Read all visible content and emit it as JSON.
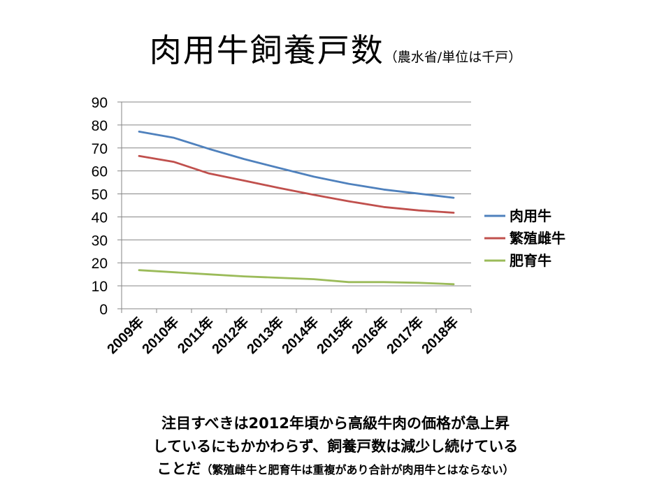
{
  "title": {
    "main": "肉用牛飼養戸数",
    "sub": "（農水省/単位は千戸）"
  },
  "notes": {
    "line1": "注目すべきは2012年頃から高級牛肉の価格が急上昇",
    "line2": "しているにもかかわらず、飼養戸数は減少し続けている",
    "line3_main": "ことだ",
    "line3_small": "（繁殖雌牛と肥育牛は重複があり合計が肉用牛とはならない）"
  },
  "chart_data": {
    "type": "line",
    "title": "肉用牛飼養戸数",
    "xlabel": "",
    "ylabel": "",
    "categories": [
      "2009年",
      "2010年",
      "2011年",
      "2012年",
      "2013年",
      "2014年",
      "2015年",
      "2016年",
      "2017年",
      "2018年"
    ],
    "ylim": [
      0,
      90
    ],
    "yticks": [
      "0",
      "10",
      "20",
      "30",
      "40",
      "50",
      "60",
      "70",
      "80",
      "90"
    ],
    "grid": true,
    "legend": "right",
    "series": [
      {
        "name": "肉用牛",
        "color": "#4F81BD",
        "values": [
          77.1,
          74.4,
          69.6,
          65.2,
          61.3,
          57.5,
          54.4,
          51.9,
          50.1,
          48.3
        ]
      },
      {
        "name": "繁殖雌牛",
        "color": "#C0504D",
        "values": [
          66.5,
          63.9,
          58.9,
          55.8,
          52.6,
          49.6,
          46.8,
          44.3,
          42.8,
          41.8
        ]
      },
      {
        "name": "肥育牛",
        "color": "#9BBB59",
        "values": [
          16.8,
          15.9,
          15.0,
          14.1,
          13.5,
          12.9,
          11.6,
          11.6,
          11.3,
          10.7
        ]
      }
    ]
  }
}
